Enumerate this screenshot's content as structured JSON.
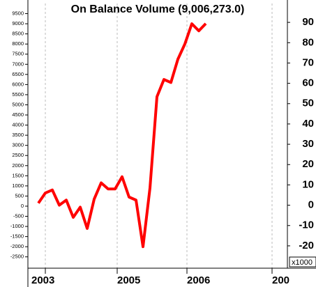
{
  "chart_data": {
    "type": "line",
    "title": "On Balance Volume (9,006,273.0)",
    "x": [
      0,
      1,
      2,
      3,
      4,
      5,
      6,
      7,
      8,
      9,
      10,
      11,
      12,
      13,
      14,
      15,
      16,
      17,
      18,
      19,
      20,
      21,
      22,
      23,
      24
    ],
    "xlim": [
      -1.5,
      35.7
    ],
    "xticks": [
      {
        "value": 1,
        "label": "2003"
      },
      {
        "value": 11.3,
        "label": "2005"
      },
      {
        "value": 21.3,
        "label": "2006"
      },
      {
        "value": 33.5,
        "label": "200"
      }
    ],
    "series": [
      {
        "name": "On Balance Volume",
        "color": "#ff0000",
        "values": [
          150,
          650,
          800,
          50,
          300,
          -550,
          -50,
          -1100,
          350,
          1150,
          850,
          850,
          1450,
          450,
          300,
          -2000,
          900,
          5400,
          6250,
          6100,
          7250,
          8000,
          9000,
          8650,
          9006
        ]
      }
    ],
    "ylim": [
      -3060,
      10000
    ],
    "yticks": [
      -2500,
      -2000,
      -1500,
      -1000,
      -500,
      0,
      500,
      1000,
      1500,
      2000,
      2500,
      3000,
      3500,
      4000,
      4500,
      5000,
      5500,
      6000,
      6500,
      7000,
      7500,
      8000,
      8500,
      9000,
      9500
    ],
    "y2lim": [
      -31,
      99.3
    ],
    "y2ticks": [
      -20,
      -10,
      0,
      10,
      20,
      30,
      40,
      50,
      60,
      70,
      80,
      90
    ],
    "y2_unit": "x1000",
    "grid": "x"
  }
}
